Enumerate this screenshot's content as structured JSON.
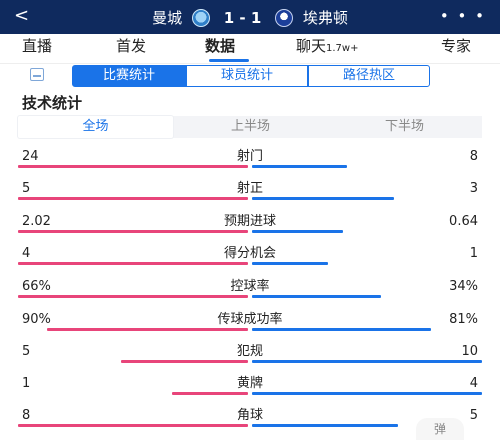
{
  "header": {
    "back_glyph": "<",
    "home_team": "曼城",
    "score_text": "1 - 1",
    "away_team": "埃弗顿",
    "more_glyph": "• • •",
    "home_crest_icon": "man-city-crest-icon",
    "away_crest_icon": "everton-crest-icon"
  },
  "tabs": [
    {
      "label": "直播",
      "suffix": ""
    },
    {
      "label": "首发",
      "suffix": ""
    },
    {
      "label": "数据",
      "suffix": ""
    },
    {
      "label": "聊天",
      "suffix": "1.7w+"
    },
    {
      "label": "专家",
      "suffix": ""
    }
  ],
  "active_tab": "数据",
  "segments": [
    "比赛统计",
    "球员统计",
    "路径热区"
  ],
  "active_segment": "比赛统计",
  "section_title": "技术统计",
  "periods": [
    "全场",
    "上半场",
    "下半场"
  ],
  "active_period": "全场",
  "stats": [
    {
      "name": "射门",
      "home": "24",
      "away": "8",
      "home_share": 0.75
    },
    {
      "name": "射正",
      "home": "5",
      "away": "3",
      "home_share": 0.625
    },
    {
      "name": "预期进球",
      "home": "2.02",
      "away": "0.64",
      "home_share": 0.76
    },
    {
      "name": "得分机会",
      "home": "4",
      "away": "1",
      "home_share": 0.8
    },
    {
      "name": "控球率",
      "home": "66%",
      "away": "34%",
      "home_share": 0.66
    },
    {
      "name": "传球成功率",
      "home": "90%",
      "away": "81%",
      "home_share": 0.53
    },
    {
      "name": "犯规",
      "home": "5",
      "away": "10",
      "home_share": 0.333
    },
    {
      "name": "黄牌",
      "home": "1",
      "away": "4",
      "home_share": 0.2
    },
    {
      "name": "角球",
      "home": "8",
      "away": "5",
      "home_share": 0.615
    }
  ],
  "danmu_label": "弹",
  "colors": {
    "header_bg": "#0f2a5e",
    "accent_blue": "#1a73e8",
    "home_bar": "#e8457a",
    "away_bar": "#1a73e8"
  }
}
